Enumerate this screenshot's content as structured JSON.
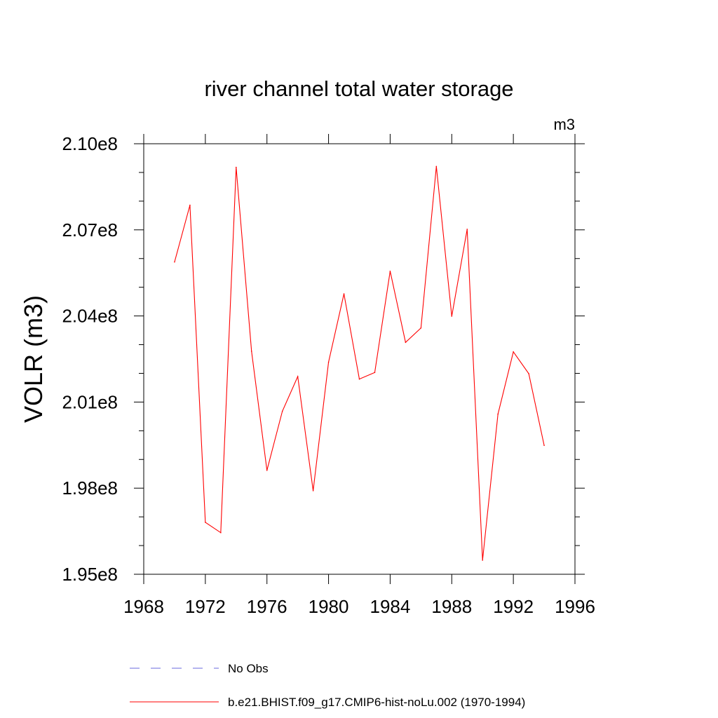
{
  "chart_data": {
    "type": "line",
    "title": "river channel total water storage",
    "units_label": "m3",
    "ylabel": "VOLR  (m3)",
    "xlabel": "",
    "xlim": [
      1968,
      1996
    ],
    "ylim": [
      195000000.0,
      210000000.0
    ],
    "x_ticks": [
      1968,
      1972,
      1976,
      1980,
      1984,
      1988,
      1992,
      1996
    ],
    "x_tick_labels": [
      "1968",
      "1972",
      "1976",
      "1980",
      "1984",
      "1988",
      "1992",
      "1996"
    ],
    "y_ticks": [
      195000000.0,
      198000000.0,
      201000000.0,
      204000000.0,
      207000000.0,
      210000000.0
    ],
    "y_tick_labels": [
      "1.95e8",
      "1.98e8",
      "2.01e8",
      "2.04e8",
      "2.07e8",
      "2.10e8"
    ],
    "series": [
      {
        "name": "b.e21.BHIST.f09_g17.CMIP6-hist-noLu.002 (1970-1994)",
        "color": "#ff0000",
        "style": "solid",
        "x": [
          1970,
          1971,
          1972,
          1973,
          1974,
          1975,
          1976,
          1977,
          1978,
          1979,
          1980,
          1981,
          1982,
          1983,
          1984,
          1985,
          1986,
          1987,
          1988,
          1989,
          1990,
          1991,
          1992,
          1993,
          1994
        ],
        "y": [
          205880000.0,
          207860000.0,
          196810000.0,
          196450000.0,
          209180000.0,
          202770000.0,
          198620000.0,
          200680000.0,
          201890000.0,
          197910000.0,
          202390000.0,
          204770000.0,
          201800000.0,
          202030000.0,
          205560000.0,
          203080000.0,
          203580000.0,
          209210000.0,
          203990000.0,
          207020000.0,
          195490000.0,
          200580000.0,
          202750000.0,
          201990000.0,
          199490000.0
        ]
      }
    ],
    "legend": [
      {
        "label": "No Obs",
        "color": "#6a6adc",
        "style": "dashed"
      },
      {
        "label": "b.e21.BHIST.f09_g17.CMIP6-hist-noLu.002 (1970-1994)",
        "color": "#ff0000",
        "style": "solid"
      }
    ],
    "legend_position": "bottom"
  }
}
